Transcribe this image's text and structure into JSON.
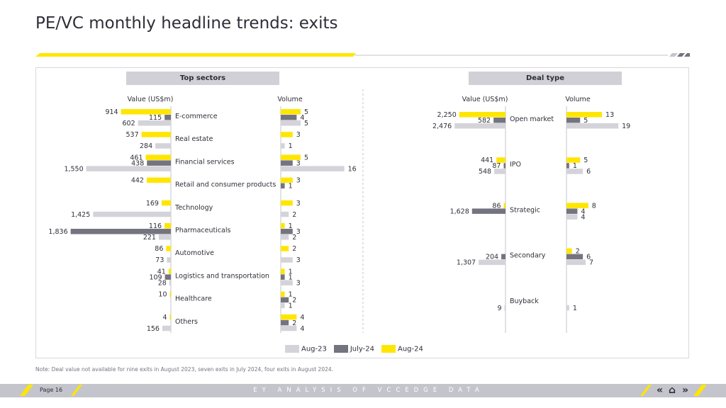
{
  "title": "PE/VC monthly headline trends: exits",
  "colors": {
    "aug23": "#d3d3d9",
    "jul24": "#747480",
    "aug24": "#ffe600"
  },
  "sectors": {
    "header": "Top sectors",
    "value_label": "Value (US$m)",
    "volume_label": "Volume",
    "rows": [
      {
        "label": "E-commerce",
        "value_aug24": "914",
        "value_jul24": "115",
        "value_aug23": "602",
        "vol_aug24": "5",
        "vol_jul24": "4",
        "vol_aug23": "5"
      },
      {
        "label": "Real estate",
        "value_aug24": "537",
        "value_jul24": "",
        "value_aug23": "284",
        "vol_aug24": "3",
        "vol_jul24": "",
        "vol_aug23": "1"
      },
      {
        "label": "Financial services",
        "value_aug24": "461",
        "value_jul24": "438",
        "value_aug23": "1,550",
        "vol_aug24": "5",
        "vol_jul24": "3",
        "vol_aug23": "16"
      },
      {
        "label": "Retail and consumer products",
        "value_aug24": "442",
        "value_jul24": "",
        "value_aug23": "",
        "vol_aug24": "3",
        "vol_jul24": "1",
        "vol_aug23": ""
      },
      {
        "label": "Technology",
        "value_aug24": "169",
        "value_jul24": "",
        "value_aug23": "1,425",
        "vol_aug24": "3",
        "vol_jul24": "",
        "vol_aug23": "2"
      },
      {
        "label": "Pharmaceuticals",
        "value_aug24": "116",
        "value_jul24": "1,836",
        "value_aug23": "221",
        "vol_aug24": "1",
        "vol_jul24": "3",
        "vol_aug23": "2"
      },
      {
        "label": "Automotive",
        "value_aug24": "86",
        "value_jul24": "",
        "value_aug23": "73",
        "vol_aug24": "2",
        "vol_jul24": "",
        "vol_aug23": "3"
      },
      {
        "label": "Logistics and transportation",
        "value_aug24": "41",
        "value_jul24": "109",
        "value_aug23": "28",
        "vol_aug24": "1",
        "vol_jul24": "1",
        "vol_aug23": "3"
      },
      {
        "label": "Healthcare",
        "value_aug24": "10",
        "value_jul24": "",
        "value_aug23": "",
        "vol_aug24": "1",
        "vol_jul24": "2",
        "vol_aug23": "1"
      },
      {
        "label": "Others",
        "value_aug24": "4",
        "value_jul24": "",
        "value_aug23": "156",
        "vol_aug24": "4",
        "vol_jul24": "2",
        "vol_aug23": "4"
      }
    ]
  },
  "deals": {
    "header": "Deal type",
    "value_label": "Value (US$m)",
    "volume_label": "Volume",
    "rows": [
      {
        "label": "Open market",
        "value_aug24": "2,250",
        "value_jul24": "582",
        "value_aug23": "2,476",
        "vol_aug24": "13",
        "vol_jul24": "5",
        "vol_aug23": "19"
      },
      {
        "label": "IPO",
        "value_aug24": "441",
        "value_jul24": "87",
        "value_aug23": "548",
        "vol_aug24": "5",
        "vol_jul24": "1",
        "vol_aug23": "6"
      },
      {
        "label": "Strategic",
        "value_aug24": "86",
        "value_jul24": "1,628",
        "value_aug23": "",
        "vol_aug24": "8",
        "vol_jul24": "4",
        "vol_aug23": "4"
      },
      {
        "label": "Secondary",
        "value_aug24": "",
        "value_jul24": "204",
        "value_aug23": "1,307",
        "vol_aug24": "2",
        "vol_jul24": "6",
        "vol_aug23": "7"
      },
      {
        "label": "Buyback",
        "value_aug24": "",
        "value_jul24": "",
        "value_aug23": "9",
        "vol_aug24": "",
        "vol_jul24": "",
        "vol_aug23": "1"
      }
    ]
  },
  "legend": [
    "Aug-23",
    "July-24",
    "Aug-24"
  ],
  "note": "Note: Deal value not available for nine exits in August 2023, seven  exits in July 2024, four exits in August 2024.",
  "footer": {
    "page": "Page 16",
    "source": "EY ANALYSIS OF VCCEDGE DATA"
  },
  "chart_data": [
    {
      "type": "bar",
      "title": "Top sectors",
      "xlabel": "Value (US$m)",
      "categories": [
        "E-commerce",
        "Real estate",
        "Financial services",
        "Retail and consumer products",
        "Technology",
        "Pharmaceuticals",
        "Automotive",
        "Logistics and transportation",
        "Healthcare",
        "Others"
      ],
      "series": [
        {
          "name": "Aug-23",
          "values": [
            602,
            284,
            1550,
            null,
            1425,
            221,
            73,
            28,
            null,
            156
          ]
        },
        {
          "name": "July-24",
          "values": [
            115,
            null,
            438,
            null,
            null,
            1836,
            null,
            109,
            null,
            null
          ]
        },
        {
          "name": "Aug-24",
          "values": [
            914,
            537,
            461,
            442,
            169,
            116,
            86,
            41,
            10,
            4
          ]
        }
      ]
    },
    {
      "type": "bar",
      "title": "Top sectors",
      "xlabel": "Volume",
      "categories": [
        "E-commerce",
        "Real estate",
        "Financial services",
        "Retail and consumer products",
        "Technology",
        "Pharmaceuticals",
        "Automotive",
        "Logistics and transportation",
        "Healthcare",
        "Others"
      ],
      "series": [
        {
          "name": "Aug-23",
          "values": [
            5,
            1,
            16,
            null,
            2,
            2,
            3,
            3,
            1,
            4
          ]
        },
        {
          "name": "July-24",
          "values": [
            4,
            null,
            3,
            1,
            null,
            3,
            null,
            1,
            2,
            2
          ]
        },
        {
          "name": "Aug-24",
          "values": [
            5,
            3,
            5,
            3,
            3,
            1,
            2,
            1,
            1,
            4
          ]
        }
      ]
    },
    {
      "type": "bar",
      "title": "Deal type",
      "xlabel": "Value (US$m)",
      "categories": [
        "Open market",
        "IPO",
        "Strategic",
        "Secondary",
        "Buyback"
      ],
      "series": [
        {
          "name": "Aug-23",
          "values": [
            2476,
            548,
            null,
            1307,
            9
          ]
        },
        {
          "name": "July-24",
          "values": [
            582,
            87,
            1628,
            204,
            null
          ]
        },
        {
          "name": "Aug-24",
          "values": [
            2250,
            441,
            86,
            null,
            null
          ]
        }
      ]
    },
    {
      "type": "bar",
      "title": "Deal type",
      "xlabel": "Volume",
      "categories": [
        "Open market",
        "IPO",
        "Strategic",
        "Secondary",
        "Buyback"
      ],
      "series": [
        {
          "name": "Aug-23",
          "values": [
            19,
            6,
            4,
            7,
            1
          ]
        },
        {
          "name": "July-24",
          "values": [
            5,
            1,
            4,
            6,
            null
          ]
        },
        {
          "name": "Aug-24",
          "values": [
            13,
            5,
            8,
            2,
            null
          ]
        }
      ]
    }
  ]
}
